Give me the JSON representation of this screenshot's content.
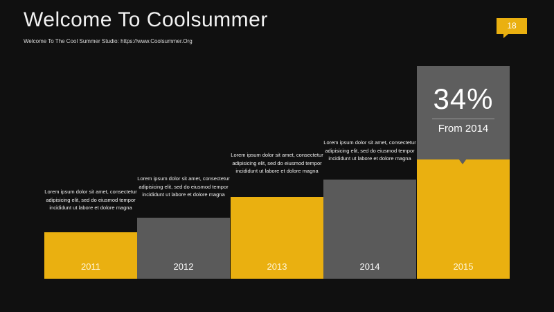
{
  "slide": {
    "title": "Welcome To Coolsummer",
    "subtitle": "Welcome To The Cool Summer Studio: https://www.Coolsummer.Org",
    "page_number": "18"
  },
  "bars": [
    {
      "year": "2011",
      "text": "Lorem ipsum dolor sit amet, consectetur adipisicing elit, sed do eiusmod tempor incididunt ut labore et dolore magna",
      "color": "#eab010"
    },
    {
      "year": "2012",
      "text": "Lorem ipsum dolor sit amet, consectetur adipisicing elit, sed do eiusmod tempor incididunt ut labore et dolore magna",
      "color": "#5a5a5a"
    },
    {
      "year": "2013",
      "text": "Lorem ipsum dolor sit amet, consectetur adipisicing elit, sed do eiusmod tempor incididunt ut labore et dolore magna",
      "color": "#eab010"
    },
    {
      "year": "2014",
      "text": "Lorem ipsum dolor sit amet, consectetur adipisicing elit, sed do eiusmod tempor incididunt ut labore et dolore magna",
      "color": "#5a5a5a"
    },
    {
      "year": "2015",
      "color": "#eab010"
    }
  ],
  "highlight": {
    "value": "34%",
    "caption": "From 2014"
  },
  "colors": {
    "background": "#101010",
    "accent": "#eab010",
    "gray": "#5a5a5a"
  }
}
